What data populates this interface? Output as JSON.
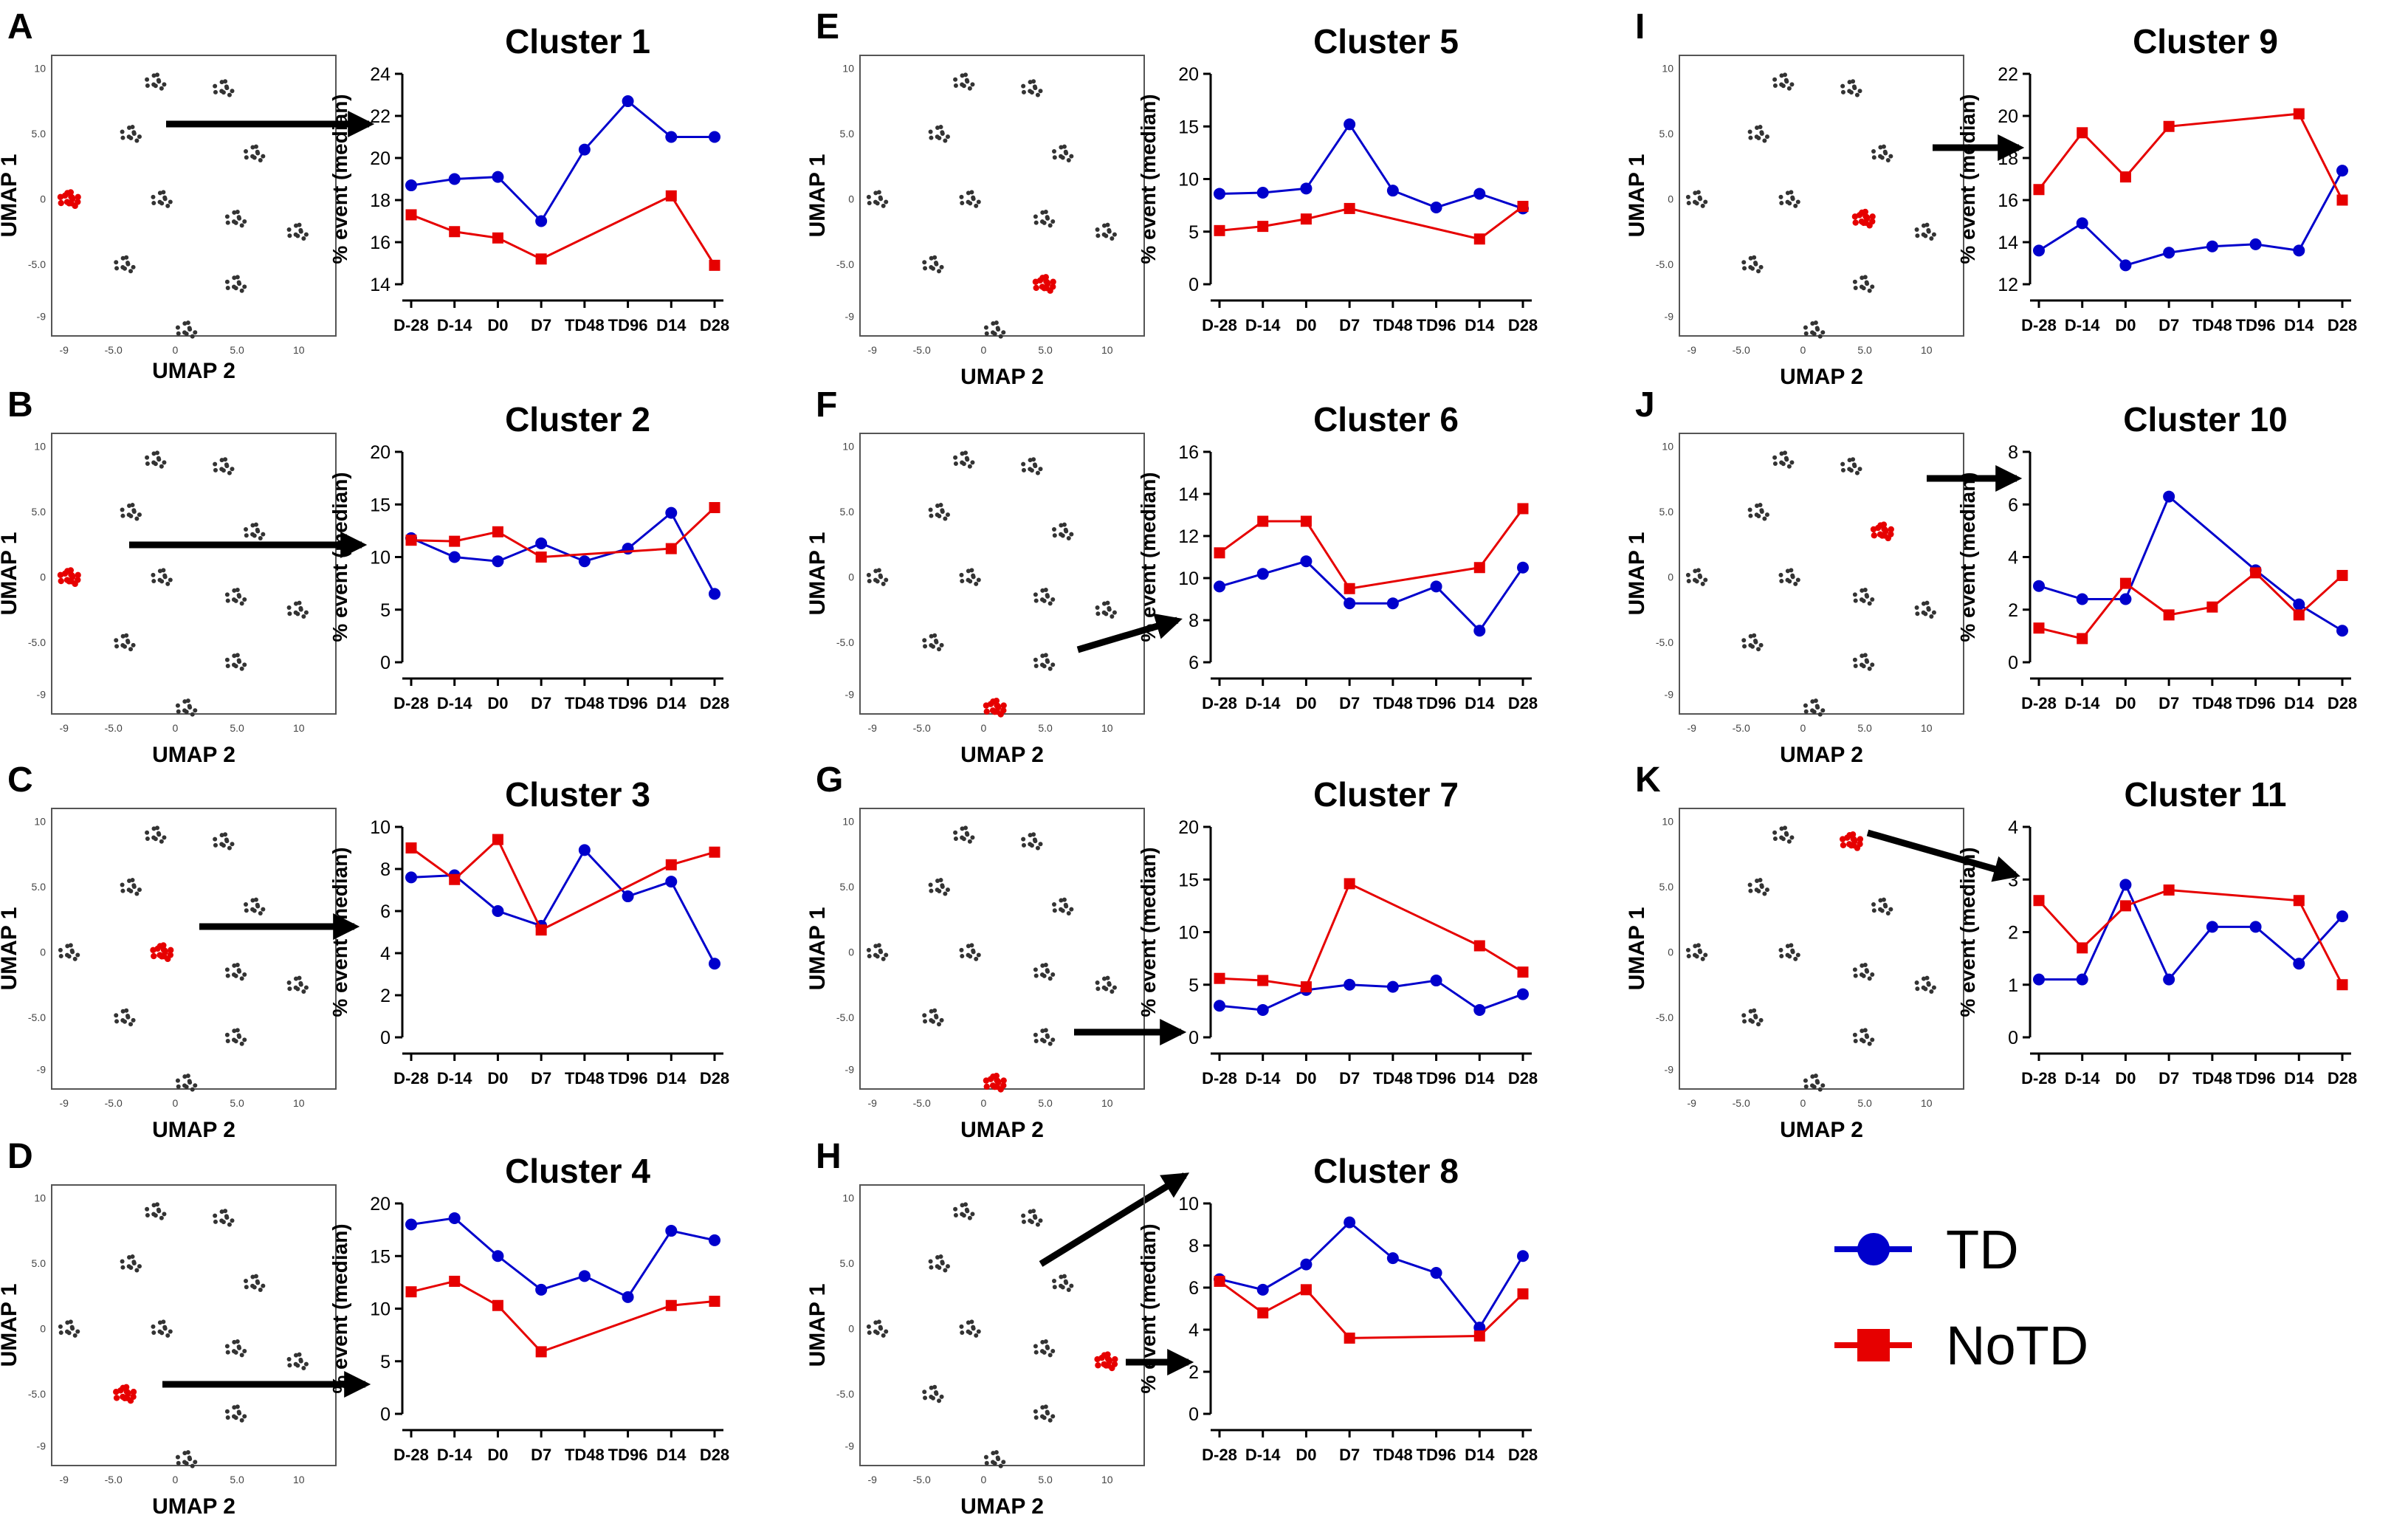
{
  "figure": {
    "umap_x_label": "UMAP 2",
    "umap_y_label": "UMAP 1",
    "umap_x_ticks": [
      "-9",
      "-5.0",
      "0",
      "5.0",
      "10"
    ],
    "umap_y_ticks": [
      "10",
      "5.0",
      "0",
      "-5.0",
      "-9"
    ],
    "umap_cluster_centers": [
      [
        -1.5,
        9
      ],
      [
        4,
        8.5
      ],
      [
        -3.5,
        5
      ],
      [
        6.5,
        3.5
      ],
      [
        -8.5,
        0
      ],
      [
        -1,
        0
      ],
      [
        5,
        -1.5
      ],
      [
        10,
        -2.5
      ],
      [
        -4,
        -5
      ],
      [
        5,
        -6.5
      ],
      [
        1,
        -10
      ]
    ],
    "categories": [
      "D-28",
      "D-14",
      "D0",
      "D7",
      "TD48",
      "TD96",
      "D14",
      "D28"
    ],
    "y_axis_label": "% event (median)",
    "colors": {
      "TD": "#0000cc",
      "NoTD": "#e60000",
      "umap_points": "#333333",
      "arrow": "#000000"
    }
  },
  "legend": {
    "items": [
      "TD",
      "NoTD"
    ]
  },
  "chart_data": [
    {
      "panel": "A",
      "type": "line",
      "title": "Cluster 1",
      "ylim": [
        14,
        24
      ],
      "yticks": [
        14,
        16,
        18,
        20,
        22,
        24
      ],
      "categories": [
        "D-28",
        "D-14",
        "D0",
        "D7",
        "TD48",
        "TD96",
        "D14",
        "D28"
      ],
      "series": [
        {
          "name": "TD",
          "points": [
            [
              0,
              18.7
            ],
            [
              1,
              19.0
            ],
            [
              2,
              19.1
            ],
            [
              3,
              17.0
            ],
            [
              4,
              20.4
            ],
            [
              5,
              22.7
            ],
            [
              6,
              21.0
            ],
            [
              7,
              21.0
            ]
          ]
        },
        {
          "name": "NoTD",
          "points": [
            [
              0,
              17.3
            ],
            [
              1,
              16.5
            ],
            [
              2,
              16.2
            ],
            [
              3,
              15.2
            ],
            [
              6,
              18.2
            ],
            [
              7,
              14.9
            ]
          ]
        }
      ]
    },
    {
      "panel": "B",
      "type": "line",
      "title": "Cluster 2",
      "ylim": [
        0,
        20
      ],
      "yticks": [
        0,
        5,
        10,
        15,
        20
      ],
      "categories": [
        "D-28",
        "D-14",
        "D0",
        "D7",
        "TD48",
        "TD96",
        "D14",
        "D28"
      ],
      "series": [
        {
          "name": "TD",
          "points": [
            [
              0,
              11.8
            ],
            [
              1,
              10.0
            ],
            [
              2,
              9.6
            ],
            [
              3,
              11.3
            ],
            [
              4,
              9.6
            ],
            [
              5,
              10.8
            ],
            [
              6,
              14.2
            ],
            [
              7,
              6.5
            ]
          ]
        },
        {
          "name": "NoTD",
          "points": [
            [
              0,
              11.6
            ],
            [
              1,
              11.5
            ],
            [
              2,
              12.4
            ],
            [
              3,
              10.0
            ],
            [
              6,
              10.8
            ],
            [
              7,
              14.7
            ]
          ]
        }
      ]
    },
    {
      "panel": "C",
      "type": "line",
      "title": "Cluster 3",
      "ylim": [
        0,
        10
      ],
      "yticks": [
        0,
        2,
        4,
        6,
        8,
        10
      ],
      "categories": [
        "D-28",
        "D-14",
        "D0",
        "D7",
        "TD48",
        "TD96",
        "D14",
        "D28"
      ],
      "series": [
        {
          "name": "TD",
          "points": [
            [
              0,
              7.6
            ],
            [
              1,
              7.7
            ],
            [
              2,
              6.0
            ],
            [
              3,
              5.3
            ],
            [
              4,
              8.9
            ],
            [
              5,
              6.7
            ],
            [
              6,
              7.4
            ],
            [
              7,
              3.5
            ]
          ]
        },
        {
          "name": "NoTD",
          "points": [
            [
              0,
              9.0
            ],
            [
              1,
              7.5
            ],
            [
              2,
              9.4
            ],
            [
              3,
              5.1
            ],
            [
              6,
              8.2
            ],
            [
              7,
              8.8
            ]
          ]
        }
      ]
    },
    {
      "panel": "D",
      "type": "line",
      "title": "Cluster 4",
      "ylim": [
        0,
        20
      ],
      "yticks": [
        0,
        5,
        10,
        15,
        20
      ],
      "categories": [
        "D-28",
        "D-14",
        "D0",
        "D7",
        "TD48",
        "TD96",
        "D14",
        "D28"
      ],
      "series": [
        {
          "name": "TD",
          "points": [
            [
              0,
              18.0
            ],
            [
              1,
              18.6
            ],
            [
              2,
              15.0
            ],
            [
              3,
              11.8
            ],
            [
              4,
              13.1
            ],
            [
              5,
              11.1
            ],
            [
              6,
              17.4
            ],
            [
              7,
              16.5
            ]
          ]
        },
        {
          "name": "NoTD",
          "points": [
            [
              0,
              11.6
            ],
            [
              1,
              12.6
            ],
            [
              2,
              10.3
            ],
            [
              3,
              5.9
            ],
            [
              6,
              10.3
            ],
            [
              7,
              10.7
            ]
          ]
        }
      ]
    },
    {
      "panel": "E",
      "type": "line",
      "title": "Cluster 5",
      "ylim": [
        0,
        20
      ],
      "yticks": [
        0,
        5,
        10,
        15,
        20
      ],
      "categories": [
        "D-28",
        "D-14",
        "D0",
        "D7",
        "TD48",
        "TD96",
        "D14",
        "D28"
      ],
      "series": [
        {
          "name": "TD",
          "points": [
            [
              0,
              8.6
            ],
            [
              1,
              8.7
            ],
            [
              2,
              9.1
            ],
            [
              3,
              15.2
            ],
            [
              4,
              8.9
            ],
            [
              5,
              7.3
            ],
            [
              6,
              8.6
            ],
            [
              7,
              7.2
            ]
          ]
        },
        {
          "name": "NoTD",
          "points": [
            [
              0,
              5.1
            ],
            [
              1,
              5.5
            ],
            [
              2,
              6.2
            ],
            [
              3,
              7.2
            ],
            [
              6,
              4.3
            ],
            [
              7,
              7.4
            ]
          ]
        }
      ]
    },
    {
      "panel": "F",
      "type": "line",
      "title": "Cluster 6",
      "ylim": [
        6,
        16
      ],
      "yticks": [
        6,
        8,
        10,
        12,
        14,
        16
      ],
      "categories": [
        "D-28",
        "D-14",
        "D0",
        "D7",
        "TD48",
        "TD96",
        "D14",
        "D28"
      ],
      "series": [
        {
          "name": "TD",
          "points": [
            [
              0,
              9.6
            ],
            [
              1,
              10.2
            ],
            [
              2,
              10.8
            ],
            [
              3,
              8.8
            ],
            [
              4,
              8.8
            ],
            [
              5,
              9.6
            ],
            [
              6,
              7.5
            ],
            [
              7,
              10.5
            ]
          ]
        },
        {
          "name": "NoTD",
          "points": [
            [
              0,
              11.2
            ],
            [
              1,
              12.7
            ],
            [
              2,
              12.7
            ],
            [
              3,
              9.5
            ],
            [
              6,
              10.5
            ],
            [
              7,
              13.3
            ]
          ]
        }
      ]
    },
    {
      "panel": "G",
      "type": "line",
      "title": "Cluster 7",
      "ylim": [
        0,
        20
      ],
      "yticks": [
        0,
        5,
        10,
        15,
        20
      ],
      "categories": [
        "D-28",
        "D-14",
        "D0",
        "D7",
        "TD48",
        "TD96",
        "D14",
        "D28"
      ],
      "series": [
        {
          "name": "TD",
          "points": [
            [
              0,
              3.0
            ],
            [
              1,
              2.6
            ],
            [
              2,
              4.5
            ],
            [
              3,
              5.0
            ],
            [
              4,
              4.8
            ],
            [
              5,
              5.4
            ],
            [
              6,
              2.6
            ],
            [
              7,
              4.1
            ]
          ]
        },
        {
          "name": "NoTD",
          "points": [
            [
              0,
              5.6
            ],
            [
              1,
              5.4
            ],
            [
              2,
              4.8
            ],
            [
              3,
              14.6
            ],
            [
              6,
              8.7
            ],
            [
              7,
              6.2
            ]
          ]
        }
      ]
    },
    {
      "panel": "H",
      "type": "line",
      "title": "Cluster 8",
      "ylim": [
        0,
        10
      ],
      "yticks": [
        0,
        2,
        4,
        6,
        8,
        10
      ],
      "categories": [
        "D-28",
        "D-14",
        "D0",
        "D7",
        "TD48",
        "TD96",
        "D14",
        "D28"
      ],
      "series": [
        {
          "name": "TD",
          "points": [
            [
              0,
              6.4
            ],
            [
              1,
              5.9
            ],
            [
              2,
              7.1
            ],
            [
              3,
              9.1
            ],
            [
              4,
              7.4
            ],
            [
              5,
              6.7
            ],
            [
              6,
              4.1
            ],
            [
              7,
              7.5
            ]
          ]
        },
        {
          "name": "NoTD",
          "points": [
            [
              0,
              6.3
            ],
            [
              1,
              4.8
            ],
            [
              2,
              5.9
            ],
            [
              3,
              3.6
            ],
            [
              6,
              3.7
            ],
            [
              7,
              5.7
            ]
          ]
        }
      ]
    },
    {
      "panel": "I",
      "type": "line",
      "title": "Cluster 9",
      "ylim": [
        12,
        22
      ],
      "yticks": [
        12,
        14,
        16,
        18,
        20,
        22
      ],
      "categories": [
        "D-28",
        "D-14",
        "D0",
        "D7",
        "TD48",
        "TD96",
        "D14",
        "D28"
      ],
      "series": [
        {
          "name": "TD",
          "points": [
            [
              0,
              13.6
            ],
            [
              1,
              14.9
            ],
            [
              2,
              12.9
            ],
            [
              3,
              13.5
            ],
            [
              4,
              13.8
            ],
            [
              5,
              13.9
            ],
            [
              6,
              13.6
            ],
            [
              7,
              17.4
            ]
          ]
        },
        {
          "name": "NoTD",
          "points": [
            [
              0,
              16.5
            ],
            [
              1,
              19.2
            ],
            [
              2,
              17.1
            ],
            [
              3,
              19.5
            ],
            [
              6,
              20.1
            ],
            [
              7,
              16.0
            ]
          ]
        }
      ]
    },
    {
      "panel": "J",
      "type": "line",
      "title": "Cluster 10",
      "ylim": [
        0,
        8
      ],
      "yticks": [
        0,
        2,
        4,
        6,
        8
      ],
      "categories": [
        "D-28",
        "D-14",
        "D0",
        "D7",
        "TD48",
        "TD96",
        "D14",
        "D28"
      ],
      "series": [
        {
          "name": "TD",
          "points": [
            [
              0,
              2.9
            ],
            [
              1,
              2.4
            ],
            [
              2,
              2.4
            ],
            [
              3,
              6.3
            ],
            [
              5,
              3.5
            ],
            [
              6,
              2.2
            ],
            [
              7,
              1.2
            ]
          ]
        },
        {
          "name": "NoTD",
          "points": [
            [
              0,
              1.3
            ],
            [
              1,
              0.9
            ],
            [
              2,
              3.0
            ],
            [
              3,
              1.8
            ],
            [
              4,
              2.1
            ],
            [
              5,
              3.4
            ],
            [
              6,
              1.8
            ],
            [
              7,
              3.3
            ]
          ]
        }
      ]
    },
    {
      "panel": "K",
      "type": "line",
      "title": "Cluster 11",
      "ylim": [
        0,
        4
      ],
      "yticks": [
        0,
        1,
        2,
        3,
        4
      ],
      "categories": [
        "D-28",
        "D-14",
        "D0",
        "D7",
        "TD48",
        "TD96",
        "D14",
        "D28"
      ],
      "series": [
        {
          "name": "TD",
          "points": [
            [
              0,
              1.1
            ],
            [
              1,
              1.1
            ],
            [
              2,
              2.9
            ],
            [
              3,
              1.1
            ],
            [
              4,
              2.1
            ],
            [
              5,
              2.1
            ],
            [
              6,
              1.4
            ],
            [
              7,
              2.3
            ]
          ]
        },
        {
          "name": "NoTD",
          "points": [
            [
              0,
              2.6
            ],
            [
              1,
              1.7
            ],
            [
              2,
              2.5
            ],
            [
              3,
              2.8
            ],
            [
              6,
              2.6
            ],
            [
              7,
              1.0
            ]
          ]
        }
      ]
    }
  ]
}
